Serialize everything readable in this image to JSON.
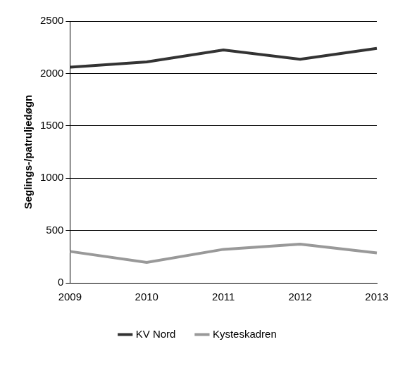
{
  "chart_data": {
    "type": "line",
    "y_label": "Seglings-/patruljedøgn",
    "categories": [
      "2009",
      "2010",
      "2011",
      "2012",
      "2013"
    ],
    "series": [
      {
        "name": "KV Nord",
        "color": "#333333",
        "values": [
          2060,
          2110,
          2225,
          2135,
          2240
        ]
      },
      {
        "name": "Kysteskadren",
        "color": "#999999",
        "values": [
          300,
          195,
          320,
          370,
          285
        ]
      }
    ],
    "ylim": [
      0,
      2500
    ],
    "yticks": [
      0,
      500,
      1000,
      1500,
      2000,
      2500
    ],
    "grid": true,
    "legend": "bottom",
    "marker": "none"
  }
}
